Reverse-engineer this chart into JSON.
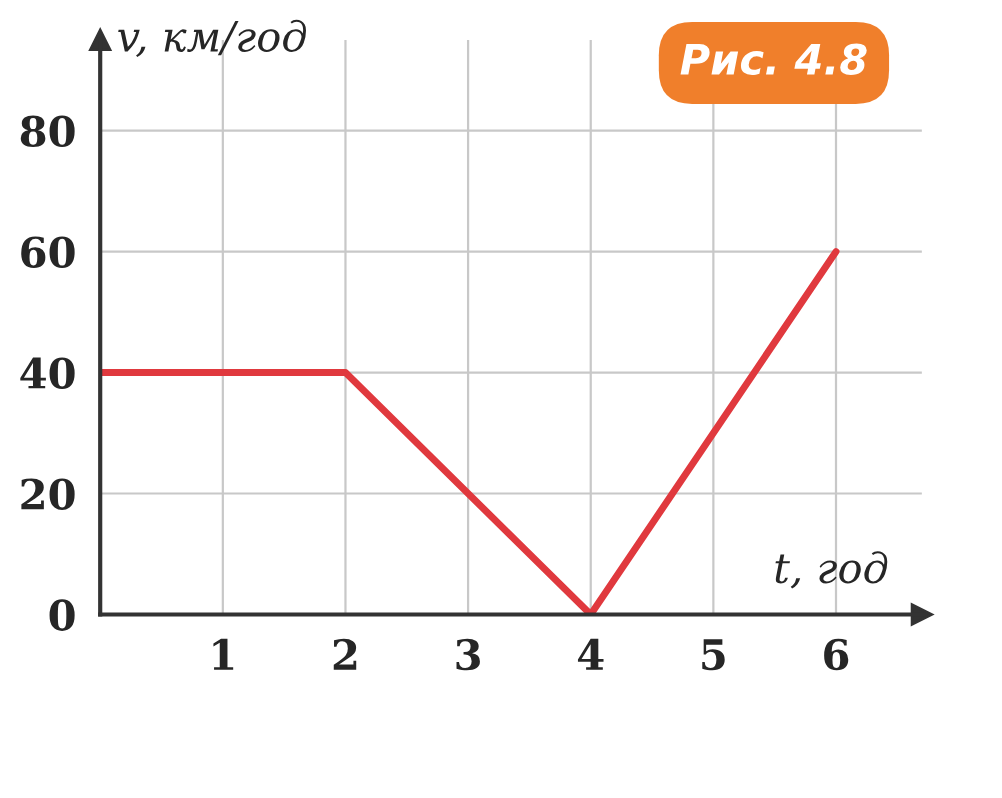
{
  "chart_data": {
    "type": "line",
    "title": "Рис. 4.8",
    "xlabel": "t, год",
    "ylabel": "v, км/год",
    "x": [
      0,
      2,
      4,
      6
    ],
    "series": [
      {
        "color": "#e0393e",
        "values": [
          40,
          40,
          0,
          60
        ]
      }
    ],
    "xlim": [
      0,
      6.7
    ],
    "ylim": [
      0,
      95
    ],
    "xticks": [
      {
        "value": 0,
        "label": null
      },
      1,
      2,
      3,
      4,
      5,
      6
    ],
    "yticks": [
      0,
      20,
      40,
      60,
      80
    ],
    "grid": true,
    "marker": "none",
    "line_style": "solid",
    "legend": false
  }
}
